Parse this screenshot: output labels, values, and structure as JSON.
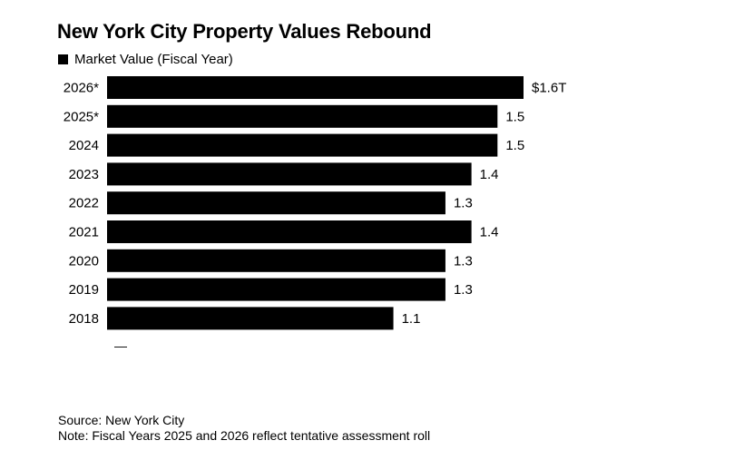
{
  "title": "New York City Property Values Rebound",
  "legend": {
    "label": "Market Value (Fiscal Year)",
    "color": "#000000"
  },
  "source": "Source: New York City",
  "note": "Note: Fiscal Years 2025 and 2026 reflect tentative assessment roll",
  "chart_data": {
    "type": "bar",
    "orientation": "horizontal",
    "title": "New York City Property Values Rebound",
    "xlabel": "",
    "ylabel": "",
    "unit": "trillion USD",
    "xlim": [
      0,
      1.6
    ],
    "series": [
      {
        "name": "Market Value (Fiscal Year)",
        "values": [
          1.6,
          1.5,
          1.5,
          1.4,
          1.3,
          1.4,
          1.3,
          1.3,
          1.1
        ]
      }
    ],
    "categories": [
      "2026*",
      "2025*",
      "2024",
      "2023",
      "2022",
      "2021",
      "2020",
      "2019",
      "2018"
    ],
    "value_labels": [
      "$1.6T",
      "1.5",
      "1.5",
      "1.4",
      "1.3",
      "1.4",
      "1.3",
      "1.3",
      "1.1"
    ],
    "axis_tick_label": "—",
    "bar_color": "#000000"
  }
}
